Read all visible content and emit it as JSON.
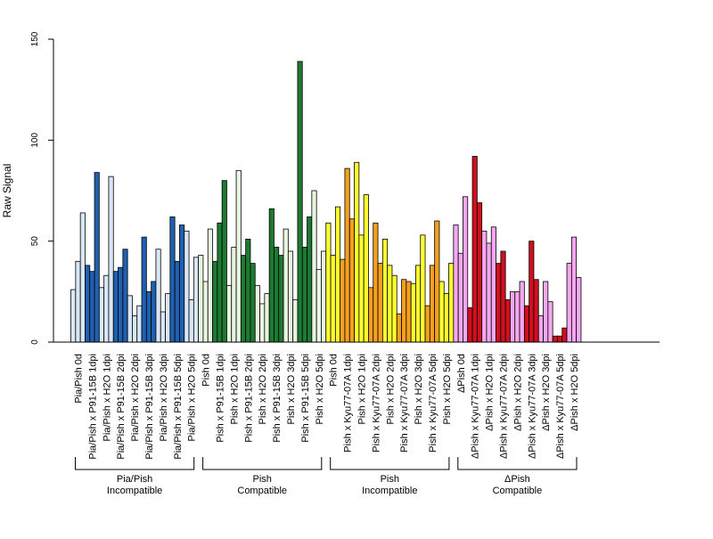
{
  "chart_data": {
    "type": "bar",
    "ylabel": "Raw Signal",
    "ylim": [
      0,
      150
    ],
    "yticks": [
      0,
      50,
      100,
      150
    ],
    "grid": false,
    "categories": [
      "Pia/Pish 0d",
      "Pia/Pish x P91-15B 1dpi",
      "Pia/Pish x H2O 1dpi",
      "Pia/Pish x P91-15B 2dpi",
      "Pia/Pish x H2O 2dpi",
      "Pia/Pish x P91-15B 3dpi",
      "Pia/Pish x H2O 3dpi",
      "Pia/Pish x P91-15B 5dpi",
      "Pia/Pish x H2O 5dpi",
      "Pish 0d",
      "Pish x P91-15B 1dpi",
      "Pish x H2O 1dpi",
      "Pish x P91-15B 2dpi",
      "Pish x H2O 2dpi",
      "Pish x P91-15B 3dpi",
      "Pish x H2O 3dpi",
      "Pish x P91-15B 5dpi",
      "Pish x H2O 5dpi",
      "Pish 0d",
      "Pish x Kyu77-07A 1dpi",
      "Pish x H2O 1dpi",
      "Pish x Kyu77-07A 2dpi",
      "Pish x H2O 2dpi",
      "Pish x Kyu77-07A 3dpi",
      "Pish x H2O 3dpi",
      "Pish x Kyu77-07A 5dpi",
      "Pish x H2O 5dpi",
      "ΔPish 0d",
      "ΔPish x Kyu77-07A 1dpi",
      "ΔPish x H2O 1dpi",
      "ΔPish x Kyu77-07A 2dpi",
      "ΔPish x H2O 2dpi",
      "ΔPish x Kyu77-07A 3dpi",
      "ΔPish x H2O 3dpi",
      "ΔPish x Kyu77-07A 5dpi",
      "ΔPish x H2O 5dpi"
    ],
    "values": [
      [
        26,
        40,
        64
      ],
      [
        38,
        35,
        84
      ],
      [
        27,
        33,
        82
      ],
      [
        35,
        37,
        46
      ],
      [
        23,
        13,
        18
      ],
      [
        52,
        25,
        30
      ],
      [
        46,
        15,
        24
      ],
      [
        62,
        40,
        58
      ],
      [
        55,
        21,
        42
      ],
      [
        43,
        30,
        56
      ],
      [
        40,
        59,
        80
      ],
      [
        28,
        47,
        85
      ],
      [
        43,
        51,
        39
      ],
      [
        28,
        19,
        24
      ],
      [
        66,
        47,
        43
      ],
      [
        56,
        45,
        21
      ],
      [
        139,
        47,
        62
      ],
      [
        75,
        36,
        45
      ],
      [
        59,
        43,
        67
      ],
      [
        41,
        86,
        61
      ],
      [
        89,
        53,
        73
      ],
      [
        27,
        59,
        39
      ],
      [
        51,
        38,
        33
      ],
      [
        14,
        31,
        30
      ],
      [
        29,
        38,
        53
      ],
      [
        18,
        38,
        60
      ],
      [
        30,
        24,
        39
      ],
      [
        58,
        44,
        72
      ],
      [
        17,
        92,
        69
      ],
      [
        55,
        49,
        57
      ],
      [
        39,
        45,
        21
      ],
      [
        25,
        25,
        30
      ],
      [
        18,
        50,
        31
      ],
      [
        13,
        30,
        20
      ],
      [
        3,
        3,
        7
      ],
      [
        39,
        52,
        32
      ]
    ],
    "groups": [
      {
        "line1": "Pia/Pish",
        "line2": "Incompatible",
        "start": 0,
        "end": 8,
        "dark": "#2060b0",
        "light": "#d8e6f5"
      },
      {
        "line1": "Pish",
        "line2": "Compatible",
        "start": 9,
        "end": 17,
        "dark": "#1e7a32",
        "light": "#e8f5e0"
      },
      {
        "line1": "Pish",
        "line2": "Incompatible",
        "start": 18,
        "end": 26,
        "dark": "#f5a020",
        "light": "#ffff30"
      },
      {
        "line1": "ΔPish",
        "line2": "Compatible",
        "start": 27,
        "end": 35,
        "dark": "#d0101e",
        "light": "#f5a8f0"
      }
    ]
  }
}
